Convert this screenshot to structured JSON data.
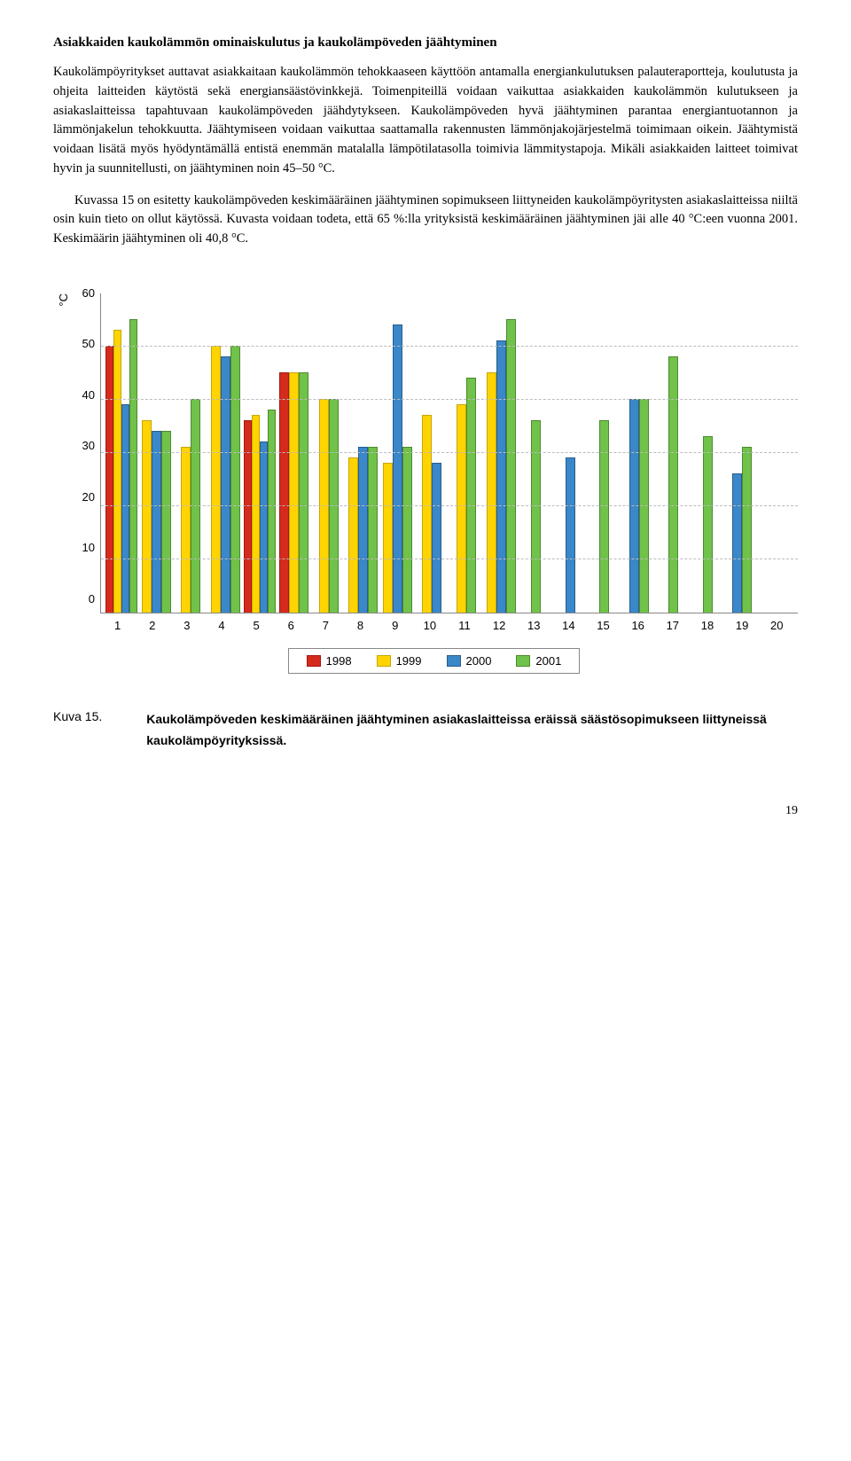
{
  "heading": "Asiakkaiden kaukolämmön ominaiskulutus ja kaukolämpöveden jäähtyminen",
  "para1": "Kaukolämpöyritykset auttavat asiakkaitaan kaukolämmön tehokkaaseen käyttöön antamalla energiankulutuksen palauteraportteja, koulutusta ja ohjeita laitteiden käytöstä sekä energiansäästövinkkejä. Toimenpiteillä voidaan vaikuttaa asiakkaiden kaukolämmön kulutukseen ja asiakaslaitteissa tapahtuvaan kaukolämpöveden jäähdytykseen. Kaukolämpöveden hyvä jäähtyminen parantaa energiantuotannon ja lämmönjakelun tehokkuutta. Jäähtymiseen voidaan vaikuttaa saattamalla rakennusten lämmönjakojärjestelmä toimimaan oikein. Jäähtymistä voidaan lisätä myös hyödyntämällä entistä enemmän matalalla lämpötilatasolla toimivia lämmitystapoja. Mikäli asiakkaiden laitteet toimivat hyvin ja suunnitellusti, on jäähtyminen noin 45–50 °C.",
  "para2": "Kuvassa 15 on esitetty kaukolämpöveden keskimääräinen jäähtyminen sopimukseen liittyneiden kaukolämpöyritysten asiakaslaitteissa niiltä osin kuin tieto on ollut käytössä. Kuvasta voidaan todeta, että 65 %:lla yrityksistä keskimääräinen jäähtyminen jäi alle 40 °C:een vuonna 2001. Keskimäärin jäähtyminen oli 40,8 °C.",
  "chart": {
    "ylabel": "°C",
    "ymax": 60,
    "yticks": [
      "60",
      "50",
      "40",
      "30",
      "20",
      "10",
      "0"
    ],
    "gridlines": [
      10,
      20,
      30,
      40,
      50
    ],
    "categories": [
      "1",
      "2",
      "3",
      "4",
      "5",
      "6",
      "7",
      "8",
      "9",
      "10",
      "11",
      "12",
      "13",
      "14",
      "15",
      "16",
      "17",
      "18",
      "19",
      "20"
    ],
    "series": {
      "1998": {
        "color": "#d52b1e",
        "border": "#a01810"
      },
      "1999": {
        "color": "#ffd400",
        "border": "#c7a600"
      },
      "2000": {
        "color": "#3a87c9",
        "border": "#2a5e8c"
      },
      "2001": {
        "color": "#70c24a",
        "border": "#4b8a2f"
      }
    },
    "data": [
      {
        "1998": 50,
        "1999": 53,
        "2000": 39,
        "2001": 55
      },
      {
        "1998": null,
        "1999": 36,
        "2000": 34,
        "2001": 34
      },
      {
        "1998": null,
        "1999": 31,
        "2000": null,
        "2001": 40
      },
      {
        "1998": null,
        "1999": 50,
        "2000": 48,
        "2001": 50
      },
      {
        "1998": 36,
        "1999": 37,
        "2000": 32,
        "2001": 38
      },
      {
        "1998": 45,
        "1999": 45,
        "2000": null,
        "2001": 45
      },
      {
        "1998": null,
        "1999": 40,
        "2000": null,
        "2001": 40
      },
      {
        "1998": null,
        "1999": 29,
        "2000": 31,
        "2001": 31
      },
      {
        "1998": null,
        "1999": 28,
        "2000": 54,
        "2001": 31
      },
      {
        "1998": null,
        "1999": 37,
        "2000": 28,
        "2001": null
      },
      {
        "1998": null,
        "1999": 39,
        "2000": null,
        "2001": 44
      },
      {
        "1998": null,
        "1999": 45,
        "2000": 51,
        "2001": 55
      },
      {
        "1998": null,
        "1999": null,
        "2000": null,
        "2001": 36
      },
      {
        "1998": null,
        "1999": null,
        "2000": 29,
        "2001": null
      },
      {
        "1998": null,
        "1999": null,
        "2000": null,
        "2001": 36
      },
      {
        "1998": null,
        "1999": null,
        "2000": 40,
        "2001": 40
      },
      {
        "1998": null,
        "1999": null,
        "2000": null,
        "2001": 48
      },
      {
        "1998": null,
        "1999": null,
        "2000": null,
        "2001": 33
      },
      {
        "1998": null,
        "1999": null,
        "2000": 26,
        "2001": 31
      },
      {
        "1998": null,
        "1999": null,
        "2000": null,
        "2001": null
      }
    ],
    "legend_order": [
      "1998",
      "1999",
      "2000",
      "2001"
    ]
  },
  "caption_label": "Kuva 15.",
  "caption_text": "Kaukolämpöveden keskimääräinen jäähtyminen asiakaslaitteissa eräissä säästösopimukseen liittyneissä kaukolämpöyrityksissä.",
  "page_number": "19"
}
